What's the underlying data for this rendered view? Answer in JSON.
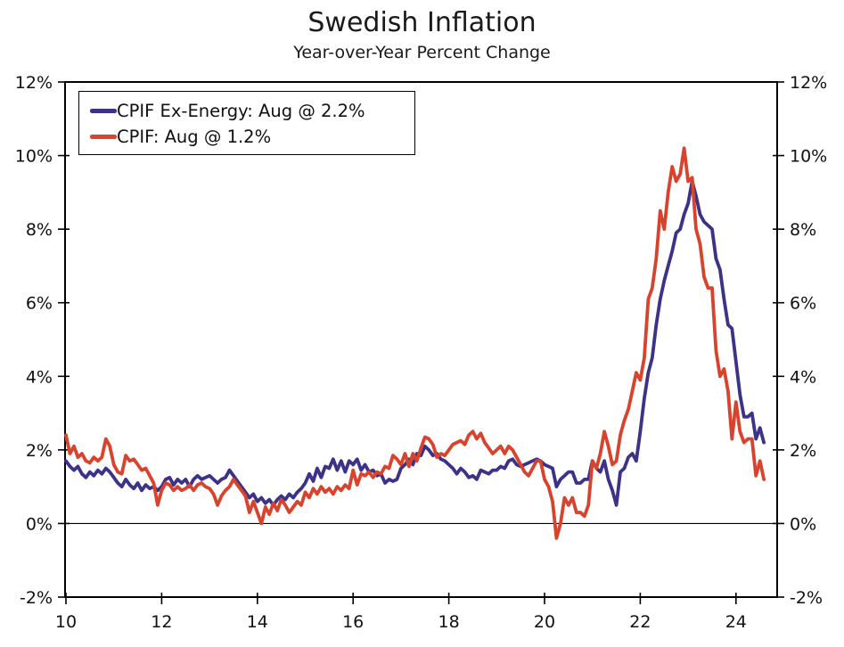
{
  "title": "Swedish Inflation",
  "subtitle": "Year-over-Year Percent Change",
  "colors": {
    "cpif_ex_energy": "#3c3287",
    "cpif": "#d8432d",
    "axis": "#000000"
  },
  "legend": {
    "position": "top-left",
    "items": [
      {
        "label": "CPIF Ex-Energy: Aug @ 2.2%",
        "color": "#3c3287"
      },
      {
        "label": "CPIF: Aug @ 1.2%",
        "color": "#d8432d"
      }
    ]
  },
  "chart_data": {
    "type": "line",
    "title": "Swedish Inflation",
    "subtitle": "Year-over-Year Percent Change",
    "x_start": "Jan 2010",
    "x_end": "Aug 2024",
    "frequency": "monthly",
    "xlim_years": [
      2010,
      2024.92
    ],
    "ylim": [
      -2,
      12
    ],
    "grid": "zero-line-only",
    "legend_position": "top-left",
    "y_tick_values": [
      -2,
      0,
      2,
      4,
      6,
      8,
      10,
      12
    ],
    "y_ticks": [
      "-2%",
      "0%",
      "2%",
      "4%",
      "6%",
      "8%",
      "10%",
      "12%"
    ],
    "y_ticks_shown_both_sides": true,
    "x_tick_values": [
      2010,
      2012,
      2014,
      2016,
      2018,
      2020,
      2022,
      2024
    ],
    "x_ticks": [
      "10",
      "12",
      "14",
      "16",
      "18",
      "20",
      "22",
      "24"
    ],
    "series": [
      {
        "name": "CPIF Ex-Energy",
        "latest_label": "Aug @ 2.2%",
        "color": "#3c3287",
        "values": [
          1.7,
          1.55,
          1.45,
          1.55,
          1.35,
          1.25,
          1.4,
          1.3,
          1.45,
          1.35,
          1.5,
          1.4,
          1.25,
          1.1,
          1.0,
          1.2,
          1.05,
          0.95,
          1.1,
          0.9,
          1.05,
          0.95,
          1.0,
          0.9,
          1.0,
          1.2,
          1.25,
          1.05,
          1.2,
          1.1,
          1.2,
          1.0,
          1.2,
          1.3,
          1.2,
          1.25,
          1.3,
          1.2,
          1.1,
          1.2,
          1.25,
          1.45,
          1.3,
          1.15,
          1.0,
          0.85,
          0.7,
          0.8,
          0.6,
          0.7,
          0.55,
          0.65,
          0.5,
          0.65,
          0.75,
          0.65,
          0.8,
          0.7,
          0.85,
          0.95,
          1.1,
          1.35,
          1.15,
          1.5,
          1.25,
          1.55,
          1.5,
          1.75,
          1.45,
          1.7,
          1.4,
          1.7,
          1.6,
          1.75,
          1.45,
          1.6,
          1.4,
          1.45,
          1.3,
          1.35,
          1.1,
          1.2,
          1.15,
          1.2,
          1.5,
          1.6,
          1.75,
          1.6,
          1.9,
          1.85,
          2.1,
          2.0,
          1.85,
          1.9,
          1.75,
          1.7,
          1.6,
          1.5,
          1.35,
          1.5,
          1.4,
          1.25,
          1.3,
          1.2,
          1.45,
          1.4,
          1.35,
          1.45,
          1.45,
          1.55,
          1.5,
          1.7,
          1.75,
          1.6,
          1.55,
          1.6,
          1.65,
          1.7,
          1.75,
          1.7,
          1.6,
          1.55,
          1.5,
          1.0,
          1.2,
          1.3,
          1.4,
          1.4,
          1.1,
          1.1,
          1.2,
          1.2,
          1.7,
          1.5,
          1.4,
          1.7,
          1.2,
          0.9,
          0.5,
          1.4,
          1.5,
          1.8,
          1.9,
          1.7,
          2.5,
          3.4,
          4.1,
          4.5,
          5.4,
          6.1,
          6.6,
          7.0,
          7.4,
          7.9,
          8.0,
          8.4,
          8.7,
          9.3,
          8.9,
          8.4,
          8.2,
          8.1,
          8.0,
          7.2,
          6.9,
          6.1,
          5.4,
          5.3,
          4.4,
          3.5,
          2.9,
          2.9,
          3.0,
          2.3,
          2.6,
          2.2
        ]
      },
      {
        "name": "CPIF",
        "latest_label": "Aug @ 1.2%",
        "color": "#d8432d",
        "values": [
          2.4,
          1.9,
          2.1,
          1.8,
          1.9,
          1.7,
          1.65,
          1.8,
          1.7,
          1.8,
          2.3,
          2.1,
          1.6,
          1.4,
          1.35,
          1.85,
          1.7,
          1.75,
          1.6,
          1.45,
          1.5,
          1.3,
          1.1,
          0.5,
          0.9,
          1.1,
          1.05,
          0.9,
          1.0,
          0.9,
          0.95,
          1.05,
          0.9,
          1.05,
          1.1,
          1.0,
          0.95,
          0.8,
          0.5,
          0.75,
          0.9,
          1.0,
          1.2,
          1.05,
          0.9,
          0.75,
          0.3,
          0.6,
          0.3,
          0.0,
          0.45,
          0.25,
          0.55,
          0.35,
          0.65,
          0.5,
          0.3,
          0.45,
          0.6,
          0.5,
          0.85,
          0.7,
          0.95,
          0.8,
          1.0,
          0.85,
          0.95,
          0.8,
          1.0,
          0.9,
          1.05,
          0.95,
          1.45,
          1.05,
          1.35,
          1.3,
          1.4,
          1.25,
          1.4,
          1.35,
          1.55,
          1.5,
          1.85,
          1.75,
          1.6,
          1.9,
          1.55,
          1.9,
          1.7,
          2.05,
          2.35,
          2.3,
          2.15,
          1.8,
          1.9,
          1.85,
          2.0,
          2.15,
          2.2,
          2.25,
          2.15,
          2.4,
          2.5,
          2.3,
          2.45,
          2.2,
          2.05,
          1.9,
          2.0,
          2.1,
          1.9,
          2.1,
          2.0,
          1.8,
          1.6,
          1.4,
          1.3,
          1.5,
          1.7,
          1.7,
          1.2,
          1.0,
          0.6,
          -0.4,
          0.0,
          0.7,
          0.5,
          0.7,
          0.3,
          0.3,
          0.2,
          0.5,
          1.7,
          1.5,
          1.9,
          2.5,
          2.1,
          1.6,
          1.7,
          2.4,
          2.8,
          3.1,
          3.6,
          4.1,
          3.9,
          4.5,
          6.1,
          6.4,
          7.2,
          8.5,
          8.0,
          9.0,
          9.7,
          9.3,
          9.5,
          10.2,
          9.3,
          9.4,
          8.0,
          7.6,
          6.7,
          6.4,
          6.4,
          4.7,
          4.0,
          4.2,
          3.6,
          2.3,
          3.3,
          2.5,
          2.2,
          2.3,
          2.3,
          1.3,
          1.7,
          1.2
        ]
      }
    ]
  }
}
